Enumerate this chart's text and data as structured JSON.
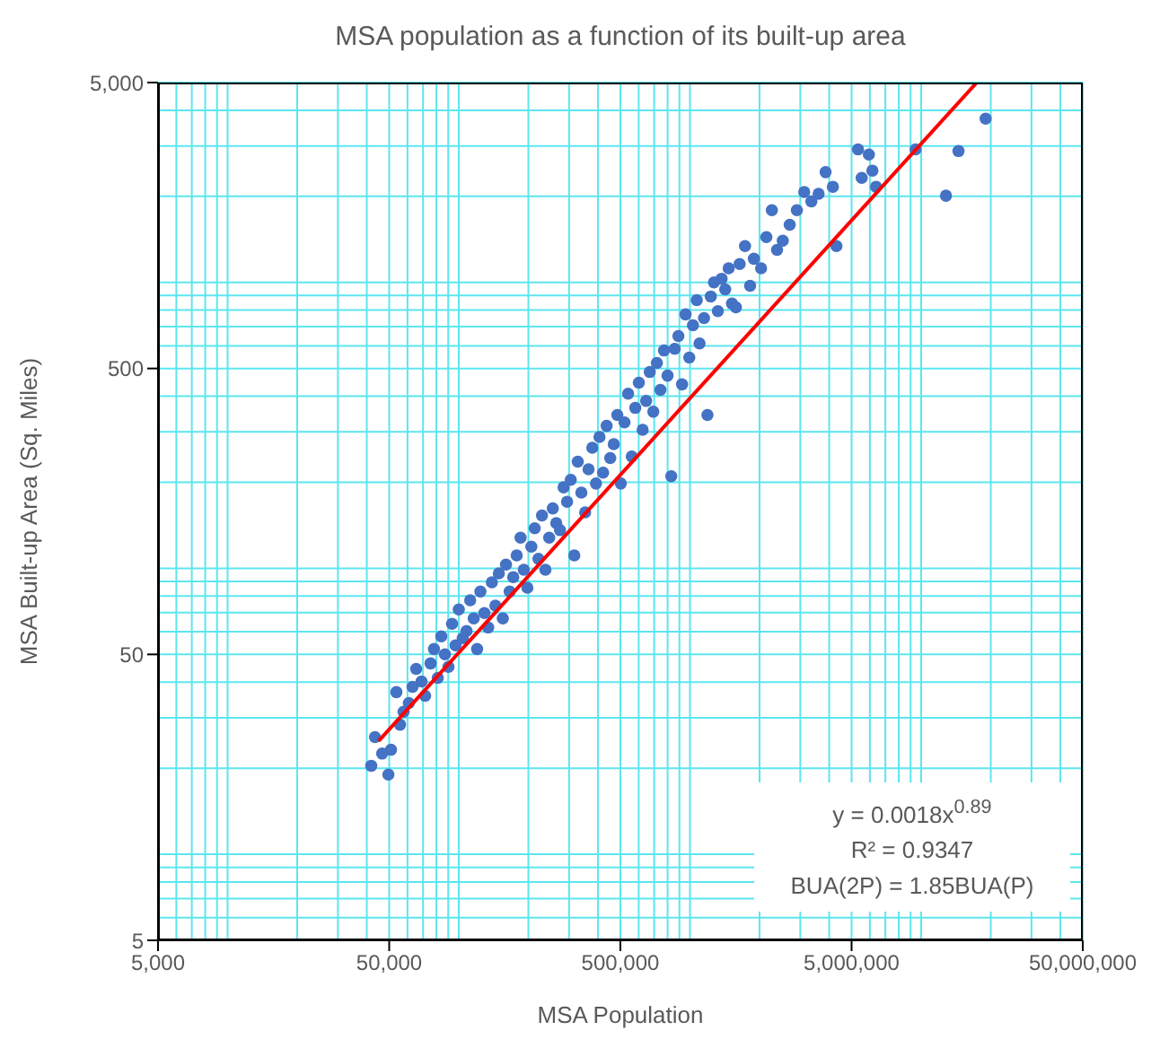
{
  "chart_data": {
    "type": "scatter",
    "title": "MSA population as a function of its built-up area",
    "xlabel": "MSA Population",
    "ylabel": "MSA Built-up Area (Sq. Miles)",
    "log": "xy",
    "grid": true,
    "xlim": [
      5000,
      50000000
    ],
    "xticks": [
      {
        "value": 5000,
        "label": "5,000"
      },
      {
        "value": 50000,
        "label": "50,000"
      },
      {
        "value": 500000,
        "label": "500,000"
      },
      {
        "value": 5000000,
        "label": "5,000,000"
      },
      {
        "value": 50000000,
        "label": "50,000,000"
      }
    ],
    "ylim": [
      5,
      5000
    ],
    "yticks": [
      5,
      50,
      500,
      {
        "value": 5000,
        "label": "5,000"
      }
    ],
    "annotations": [
      "y = 0.0018x$^{0.89}$",
      "R² = 0.9347",
      "BUA(2P) = 1.85BUA(P)"
    ],
    "series": [
      {
        "color": "#4472c4",
        "marker": "circle",
        "x": [
          41800,
          43400,
          46600,
          49600,
          50900,
          53700,
          55700,
          57700,
          60800,
          63100,
          65400,
          69000,
          71500,
          75500,
          78100,
          81100,
          84000,
          87100,
          90200,
          93500,
          96800,
          100000,
          104000,
          108000,
          112000,
          116000,
          120000,
          124000,
          129000,
          134000,
          139000,
          144000,
          149000,
          155000,
          160000,
          166000,
          172000,
          178000,
          185000,
          191000,
          198000,
          206000,
          213000,
          221000,
          229000,
          237000,
          246000,
          255000,
          264000,
          274000,
          284000,
          294000,
          305000,
          316000,
          327000,
          339000,
          352000,
          364000,
          378000,
          392000,
          406000,
          421000,
          436000,
          452000,
          468000,
          485000,
          502000,
          521000,
          540000,
          560000,
          580000,
          601000,
          624000,
          646000,
          670000,
          694000,
          719000,
          745000,
          772000,
          800000,
          830000,
          859000,
          891000,
          924000,
          957000,
          993000,
          1030000,
          1070000,
          1100000,
          1150000,
          1190000,
          1230000,
          1270000,
          1320000,
          1370000,
          1420000,
          1470000,
          1520000,
          1580000,
          1640000,
          1730000,
          1820000,
          1890000,
          2030000,
          2140000,
          2260000,
          2380000,
          2520000,
          2700000,
          2900000,
          3120000,
          3350000,
          3600000,
          3860000,
          4150000,
          4300000,
          5330000,
          5530000,
          5940000,
          6150000,
          6380000,
          9460000,
          12800000,
          14500000,
          19000000
        ],
        "values": [
          20.4,
          25.7,
          22.5,
          19.0,
          23.2,
          36.9,
          28.4,
          31.5,
          33.8,
          38.5,
          44.5,
          40.2,
          35.8,
          46.5,
          52.2,
          41.4,
          57.8,
          50,
          45.2,
          64.0,
          53.8,
          71.8,
          57.0,
          60.4,
          77.3,
          66.8,
          52.2,
          83.0,
          69.8,
          62.1,
          89.3,
          74.0,
          96.0,
          66.8,
          103,
          83.0,
          93.2,
          111,
          128,
          98.8,
          85.5,
          119,
          138,
          108,
          153,
          98.8,
          128,
          162,
          144,
          136,
          192,
          171,
          204,
          111,
          236,
          184,
          157,
          222,
          264,
          198,
          288,
          216,
          315,
          243,
          272,
          344,
          198,
          324,
          408,
          246,
          364,
          446,
          305,
          385,
          486,
          353,
          523,
          421,
          578,
          472,
          210,
          586,
          649,
          440,
          773,
          546,
          708,
          867,
          612,
          750,
          344,
          893,
          1000,
          794,
          1030,
          946,
          1120,
          843,
          818,
          1160,
          1340,
          973,
          1210,
          1120,
          1440,
          1790,
          1300,
          1400,
          1590,
          1790,
          2070,
          1920,
          2040,
          2430,
          2160,
          1340,
          2920,
          2320,
          2800,
          2460,
          2160,
          2920,
          2010,
          2880,
          3740
        ]
      },
      {
        "type": "line",
        "color": "#ff0000",
        "x": [
          45000,
          17400000
        ],
        "values": [
          24.9,
          5000
        ]
      }
    ]
  }
}
